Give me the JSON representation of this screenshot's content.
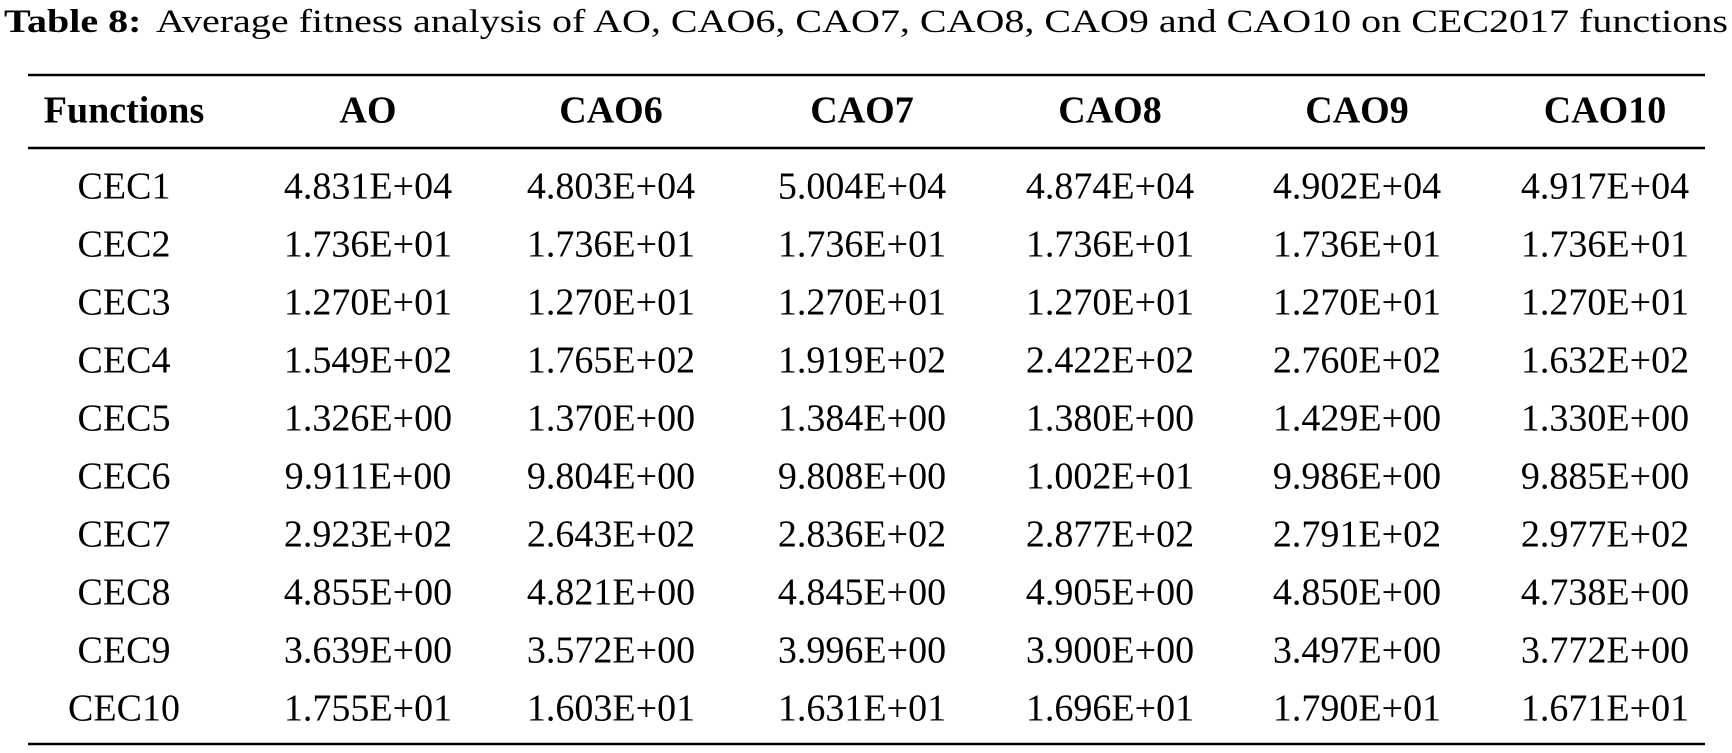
{
  "caption": {
    "label": "Table 8:",
    "text": "Average fitness analysis of AO, CAO6, CAO7, CAO8, CAO9 and CAO10 on CEC2017 functions"
  },
  "table": {
    "header": [
      "Functions",
      "AO",
      "CAO6",
      "CAO7",
      "CAO8",
      "CAO9",
      "CAO10"
    ],
    "rows": [
      [
        "CEC1",
        "4.831E+04",
        "4.803E+04",
        "5.004E+04",
        "4.874E+04",
        "4.902E+04",
        "4.917E+04"
      ],
      [
        "CEC2",
        "1.736E+01",
        "1.736E+01",
        "1.736E+01",
        "1.736E+01",
        "1.736E+01",
        "1.736E+01"
      ],
      [
        "CEC3",
        "1.270E+01",
        "1.270E+01",
        "1.270E+01",
        "1.270E+01",
        "1.270E+01",
        "1.270E+01"
      ],
      [
        "CEC4",
        "1.549E+02",
        "1.765E+02",
        "1.919E+02",
        "2.422E+02",
        "2.760E+02",
        "1.632E+02"
      ],
      [
        "CEC5",
        "1.326E+00",
        "1.370E+00",
        "1.384E+00",
        "1.380E+00",
        "1.429E+00",
        "1.330E+00"
      ],
      [
        "CEC6",
        "9.911E+00",
        "9.804E+00",
        "9.808E+00",
        "1.002E+01",
        "9.986E+00",
        "9.885E+00"
      ],
      [
        "CEC7",
        "2.923E+02",
        "2.643E+02",
        "2.836E+02",
        "2.877E+02",
        "2.791E+02",
        "2.977E+02"
      ],
      [
        "CEC8",
        "4.855E+00",
        "4.821E+00",
        "4.845E+00",
        "4.905E+00",
        "4.850E+00",
        "4.738E+00"
      ],
      [
        "CEC9",
        "3.639E+00",
        "3.572E+00",
        "3.996E+00",
        "3.900E+00",
        "3.497E+00",
        "3.772E+00"
      ],
      [
        "CEC10",
        "1.755E+01",
        "1.603E+01",
        "1.631E+01",
        "1.696E+01",
        "1.790E+01",
        "1.671E+01"
      ]
    ]
  }
}
